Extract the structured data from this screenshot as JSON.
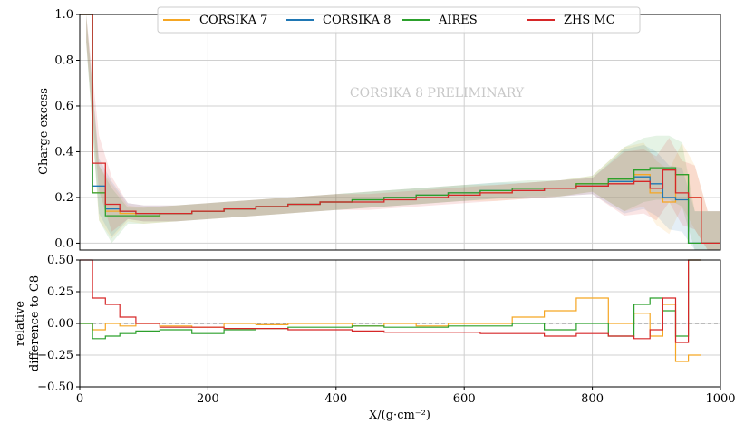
{
  "chart_data": [
    {
      "type": "line",
      "panel": "top",
      "ylabel": "Charge excess",
      "xlim": [
        0,
        1000
      ],
      "ylim": [
        -0.03,
        1.0
      ],
      "yticks": [
        0.0,
        0.2,
        0.4,
        0.6,
        0.8,
        1.0
      ],
      "ytick_labels": [
        "0.0",
        "0.2",
        "0.4",
        "0.6",
        "0.8",
        "1.0"
      ],
      "grid": true,
      "legend_position": "top-center",
      "annotation": "CORSIKA 8 PRELIMINARY",
      "x": [
        10,
        30,
        50,
        75,
        100,
        150,
        200,
        250,
        300,
        350,
        400,
        450,
        500,
        550,
        600,
        650,
        700,
        750,
        800,
        850,
        880,
        900,
        920,
        940,
        960,
        980,
        1000
      ],
      "series": [
        {
          "name": "CORSIKA 7",
          "color": "#f5a623",
          "values": [
            1.0,
            0.22,
            0.14,
            0.13,
            0.12,
            0.13,
            0.14,
            0.15,
            0.16,
            0.17,
            0.18,
            0.19,
            0.2,
            0.21,
            0.22,
            0.22,
            0.23,
            0.24,
            0.26,
            0.28,
            0.3,
            0.22,
            0.18,
            0.3,
            0.2,
            0.0,
            0.0
          ]
        },
        {
          "name": "CORSIKA 8",
          "color": "#1f77b4",
          "values": [
            1.0,
            0.25,
            0.15,
            0.14,
            0.13,
            0.13,
            0.14,
            0.15,
            0.16,
            0.17,
            0.18,
            0.19,
            0.2,
            0.21,
            0.22,
            0.23,
            0.23,
            0.24,
            0.25,
            0.27,
            0.29,
            0.26,
            0.2,
            0.19,
            0.0,
            0.0,
            0.0
          ]
        },
        {
          "name": "AIRES",
          "color": "#2ca02c",
          "values": [
            1.0,
            0.22,
            0.12,
            0.12,
            0.12,
            0.13,
            0.14,
            0.15,
            0.16,
            0.17,
            0.18,
            0.19,
            0.2,
            0.21,
            0.22,
            0.23,
            0.24,
            0.24,
            0.26,
            0.28,
            0.32,
            0.33,
            0.33,
            0.3,
            0.0,
            0.0,
            0.0
          ]
        },
        {
          "name": "ZHS MC",
          "color": "#d62728",
          "values": [
            1.0,
            0.35,
            0.17,
            0.14,
            0.13,
            0.13,
            0.14,
            0.15,
            0.16,
            0.17,
            0.18,
            0.18,
            0.19,
            0.2,
            0.21,
            0.22,
            0.23,
            0.24,
            0.25,
            0.26,
            0.27,
            0.24,
            0.32,
            0.22,
            0.2,
            0.0,
            0.0
          ]
        }
      ]
    },
    {
      "type": "line",
      "panel": "bottom",
      "ylabel": "relative difference to C8",
      "xlabel": "X/(g·cm⁻²)",
      "xlim": [
        0,
        1000
      ],
      "ylim": [
        -0.5,
        0.5
      ],
      "xticks": [
        0,
        200,
        400,
        600,
        800,
        1000
      ],
      "xtick_labels": [
        "0",
        "200",
        "400",
        "600",
        "800",
        "1000"
      ],
      "yticks": [
        -0.5,
        -0.25,
        0.0,
        0.25,
        0.5
      ],
      "ytick_labels": [
        "−0.50",
        "−0.25",
        "0.00",
        "0.25",
        "0.50"
      ],
      "grid": true,
      "reference_line": 0.0,
      "x": [
        10,
        30,
        50,
        75,
        100,
        150,
        200,
        250,
        300,
        350,
        400,
        450,
        500,
        550,
        600,
        650,
        700,
        750,
        800,
        850,
        880,
        900,
        920,
        940,
        960
      ],
      "series": [
        {
          "name": "CORSIKA 7",
          "color": "#f5a623",
          "values": [
            0.0,
            -0.05,
            0.0,
            -0.02,
            0.0,
            -0.02,
            -0.03,
            0.0,
            -0.01,
            0.0,
            0.0,
            -0.02,
            0.0,
            -0.02,
            0.0,
            0.0,
            0.05,
            0.1,
            0.2,
            0.0,
            0.08,
            -0.1,
            0.15,
            -0.3,
            -0.25
          ]
        },
        {
          "name": "AIRES",
          "color": "#2ca02c",
          "values": [
            0.0,
            -0.12,
            -0.1,
            -0.08,
            -0.06,
            -0.05,
            -0.08,
            -0.05,
            -0.04,
            -0.03,
            -0.03,
            -0.02,
            -0.03,
            -0.03,
            -0.02,
            -0.02,
            0.0,
            -0.05,
            0.0,
            -0.1,
            0.15,
            0.2,
            0.1,
            -0.1,
            0.5
          ]
        },
        {
          "name": "ZHS MC",
          "color": "#d62728",
          "values": [
            0.5,
            0.2,
            0.15,
            0.05,
            0.0,
            -0.03,
            -0.03,
            -0.04,
            -0.04,
            -0.05,
            -0.05,
            -0.06,
            -0.07,
            -0.07,
            -0.07,
            -0.08,
            -0.08,
            -0.1,
            -0.08,
            -0.1,
            -0.12,
            -0.05,
            0.2,
            -0.15,
            0.5
          ]
        }
      ]
    }
  ]
}
